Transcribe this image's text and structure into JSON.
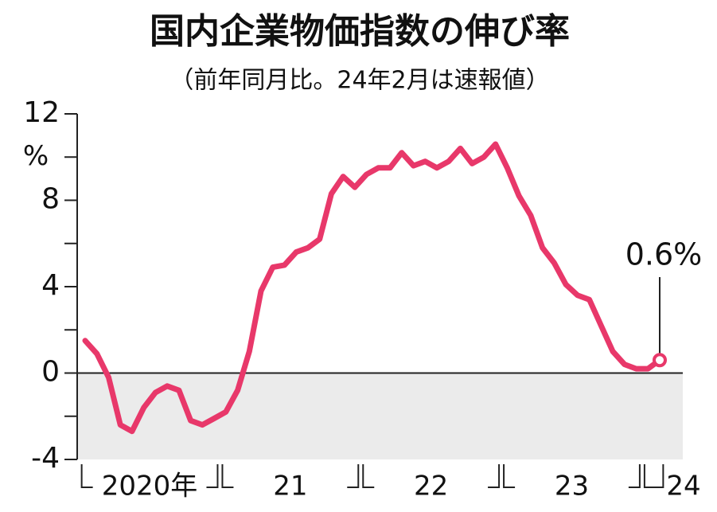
{
  "chart_data": {
    "type": "line",
    "title": "国内企業物価指数の伸び率",
    "subtitle": "（前年同月比。24年2月は速報値）",
    "y_unit": "%",
    "categories": [
      "2020年",
      null,
      null,
      null,
      null,
      null,
      null,
      null,
      null,
      null,
      null,
      null,
      "21",
      null,
      null,
      null,
      null,
      null,
      null,
      null,
      null,
      null,
      null,
      null,
      "22",
      null,
      null,
      null,
      null,
      null,
      null,
      null,
      null,
      null,
      null,
      null,
      "23",
      null,
      null,
      null,
      null,
      null,
      null,
      null,
      null,
      null,
      null,
      null,
      "24",
      null
    ],
    "values": [
      1.5,
      0.9,
      -0.2,
      -2.4,
      -2.7,
      -1.6,
      -0.9,
      -0.6,
      -0.8,
      -2.2,
      -2.4,
      -2.1,
      -1.8,
      -0.8,
      1.0,
      3.8,
      4.9,
      5.0,
      5.6,
      5.8,
      6.2,
      8.3,
      9.1,
      8.6,
      9.2,
      9.5,
      9.5,
      10.2,
      9.6,
      9.8,
      9.5,
      9.8,
      10.4,
      9.7,
      10.0,
      10.6,
      9.5,
      8.2,
      7.3,
      5.8,
      5.1,
      4.1,
      3.6,
      3.4,
      2.2,
      1.0,
      0.4,
      0.2,
      0.2,
      0.6
    ],
    "color": "#e8386a",
    "ylim": [
      -4,
      12
    ],
    "yticks": [
      -4,
      0,
      4,
      8,
      12
    ],
    "minor_yticks": [
      -2,
      2,
      6,
      10
    ],
    "annotation": "0.6%",
    "negative_shading": "#ebebeb"
  }
}
